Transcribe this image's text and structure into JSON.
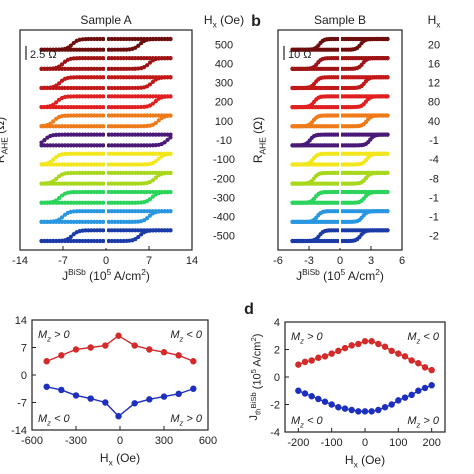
{
  "chart_data": [
    {
      "panel": "a",
      "type": "scatter",
      "panel_label": "",
      "title": "Sample A",
      "xlabel": "J^BiSb (10^5 A/cm^2)",
      "ylabel": "R_AHE (Ω)",
      "right_label": "H_x (Oe)",
      "scale_bar": "2.5 Ω",
      "xlim": [
        -14,
        14
      ],
      "xticks": [
        "-14",
        "-7",
        "0",
        "7",
        "14"
      ],
      "loop_half_width": 10.5,
      "series": [
        {
          "hx": "500",
          "color": "#6e0d0d",
          "switch": 5.5
        },
        {
          "hx": "400",
          "color": "#9e1414",
          "switch": 7.0
        },
        {
          "hx": "300",
          "color": "#c21818",
          "switch": 7.5
        },
        {
          "hx": "200",
          "color": "#e02020",
          "switch": 8.0
        },
        {
          "hx": "100",
          "color": "#ef7a1a",
          "switch": 8.5
        },
        {
          "hx": "-10",
          "color": "#4b1a78",
          "switch": 10.0
        },
        {
          "hx": "-100",
          "color": "#f2e61c",
          "switch": 8.5
        },
        {
          "hx": "-200",
          "color": "#a8d81c",
          "switch": 8.0
        },
        {
          "hx": "-300",
          "color": "#2bd45a",
          "switch": 7.5
        },
        {
          "hx": "-400",
          "color": "#2896e0",
          "switch": 7.0
        },
        {
          "hx": "-500",
          "color": "#1a3aa8",
          "switch": 5.5
        }
      ]
    },
    {
      "panel": "b",
      "type": "scatter",
      "panel_label": "b",
      "title": "Sample B",
      "xlabel": "J^BiSb (10^5 A/cm^2)",
      "ylabel": "R_AHE (Ω)",
      "right_label": "H_x",
      "scale_bar": "10 Ω",
      "xlim": [
        -6,
        6
      ],
      "xticks": [
        "-6",
        "-3",
        "0",
        "3",
        "6"
      ],
      "loop_half_width": 4.6,
      "series": [
        {
          "hx": "20",
          "color": "#6e0d0d",
          "switch": 2.0
        },
        {
          "hx": "16",
          "color": "#9e1414",
          "switch": 2.2
        },
        {
          "hx": "12",
          "color": "#c21818",
          "switch": 2.4
        },
        {
          "hx": "80",
          "color": "#e02020",
          "switch": 2.5
        },
        {
          "hx": "40",
          "color": "#ef7a1a",
          "switch": 2.6
        },
        {
          "hx": "-1",
          "color": "#4b1a78",
          "switch": 2.9
        },
        {
          "hx": "-4",
          "color": "#f2e61c",
          "switch": 2.6
        },
        {
          "hx": "-8",
          "color": "#a8d81c",
          "switch": 2.5
        },
        {
          "hx": "-1",
          "color": "#2bd45a",
          "switch": 2.4
        },
        {
          "hx": "-1",
          "color": "#2896e0",
          "switch": 2.2
        },
        {
          "hx": "-2",
          "color": "#1a3aa8",
          "switch": 2.0
        }
      ]
    },
    {
      "panel": "c",
      "type": "line",
      "panel_label": "",
      "xlabel": "H_x (Oe)",
      "ylabel": "",
      "xlim": [
        -600,
        600
      ],
      "ylim": [
        -14,
        14
      ],
      "xticks": [
        -600,
        -300,
        0,
        300,
        600
      ],
      "yticks": [
        -14,
        -7,
        0,
        7,
        14
      ],
      "annotations": [
        {
          "text": "M_z > 0",
          "pos": "top-left"
        },
        {
          "text": "M_z < 0",
          "pos": "top-right"
        },
        {
          "text": "M_z < 0",
          "pos": "bottom-left"
        },
        {
          "text": "M_z > 0",
          "pos": "bottom-right"
        }
      ],
      "x": [
        -500,
        -400,
        -300,
        -200,
        -100,
        -10,
        100,
        200,
        300,
        400,
        500
      ],
      "series": [
        {
          "color": "#d42a2a",
          "values": [
            3.5,
            5.0,
            6.5,
            7.0,
            7.5,
            10.0,
            7.5,
            6.5,
            5.8,
            5.0,
            3.5
          ]
        },
        {
          "color": "#1c2fbf",
          "values": [
            -3.0,
            -3.8,
            -5.2,
            -6.0,
            -7.0,
            -10.5,
            -7.2,
            -6.2,
            -5.5,
            -4.8,
            -3.5
          ]
        }
      ]
    },
    {
      "panel": "d",
      "type": "line",
      "panel_label": "d",
      "xlabel": "H_x (Oe)",
      "ylabel": "J_th^BiSb (10^5 A/cm^2)",
      "xlim": [
        -240,
        240
      ],
      "ylim": [
        -4,
        4
      ],
      "xticks": [
        -200,
        -100,
        0,
        100,
        200
      ],
      "yticks": [
        -4,
        -2,
        0,
        2,
        4
      ],
      "annotations": [
        {
          "text": "M_z > 0",
          "pos": "top-left"
        },
        {
          "text": "M_z < 0",
          "pos": "top-right"
        },
        {
          "text": "M_z < 0",
          "pos": "bottom-left"
        },
        {
          "text": "M_z > 0",
          "pos": "bottom-right"
        }
      ],
      "x": [
        -200,
        -180,
        -160,
        -140,
        -120,
        -100,
        -80,
        -60,
        -40,
        -20,
        0,
        20,
        40,
        60,
        80,
        100,
        120,
        140,
        160,
        180,
        200
      ],
      "series": [
        {
          "color": "#d42a2a",
          "values": [
            0.9,
            1.1,
            1.2,
            1.4,
            1.5,
            1.7,
            1.9,
            2.1,
            2.3,
            2.4,
            2.6,
            2.6,
            2.4,
            2.2,
            1.9,
            1.7,
            1.5,
            1.2,
            1.0,
            0.7,
            0.5
          ]
        },
        {
          "color": "#1c2fbf",
          "values": [
            -1.0,
            -1.2,
            -1.4,
            -1.6,
            -1.8,
            -2.0,
            -2.2,
            -2.3,
            -2.4,
            -2.5,
            -2.5,
            -2.5,
            -2.4,
            -2.2,
            -2.0,
            -1.7,
            -1.5,
            -1.3,
            -1.0,
            -0.8,
            -0.6
          ]
        }
      ]
    }
  ]
}
